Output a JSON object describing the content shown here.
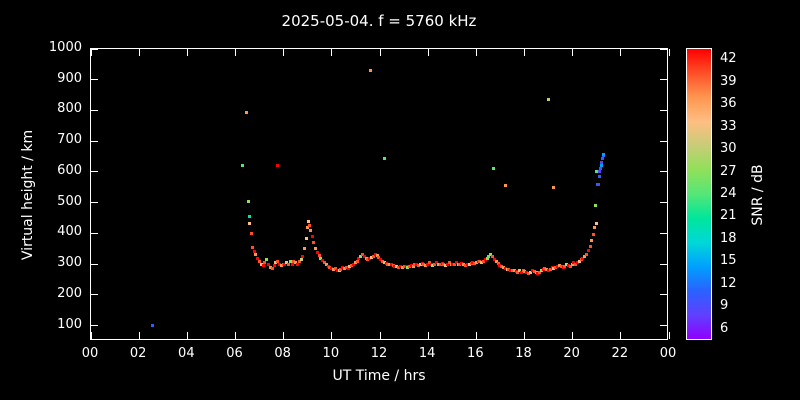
{
  "chart_data": {
    "type": "scatter",
    "title": "2025-05-04. f = 5760 kHz",
    "xlabel": "UT Time / hrs",
    "ylabel": "Virtual height / km",
    "xlim": [
      0,
      24
    ],
    "ylim": [
      50,
      1000
    ],
    "xticks": [
      0,
      2,
      4,
      6,
      8,
      10,
      12,
      14,
      16,
      18,
      20,
      22,
      24
    ],
    "xtick_labels": [
      "00",
      "02",
      "04",
      "06",
      "08",
      "10",
      "12",
      "14",
      "16",
      "18",
      "20",
      "22",
      "00"
    ],
    "yticks": [
      100,
      200,
      300,
      400,
      500,
      600,
      700,
      800,
      900,
      1000
    ],
    "background": "#000000",
    "grid": false,
    "legend": "colorbar-right",
    "colorbar": {
      "label": "SNR / dB",
      "min": 4.5,
      "max": 43.5,
      "ticks": [
        6,
        9,
        12,
        15,
        18,
        21,
        24,
        27,
        30,
        33,
        36,
        39,
        42
      ],
      "colors": [
        "#9000ff",
        "#6040ff",
        "#2a62ff",
        "#00a0ff",
        "#00d8d8",
        "#00e69b",
        "#55e677",
        "#90e05a",
        "#c8cc78",
        "#ffbe82",
        "#ff9650",
        "#ff5028",
        "#ff0000"
      ]
    },
    "points_format": "[ut_hours, virtual_height_km, snr_db]",
    "points": [
      [
        2.55,
        100,
        12
      ],
      [
        6.3,
        620,
        24
      ],
      [
        6.45,
        795,
        36
      ],
      [
        6.52,
        505,
        27
      ],
      [
        6.58,
        455,
        21
      ],
      [
        6.6,
        432,
        33
      ],
      [
        6.65,
        400,
        39
      ],
      [
        6.7,
        355,
        39
      ],
      [
        6.78,
        340,
        42
      ],
      [
        6.85,
        330,
        36
      ],
      [
        6.92,
        320,
        42
      ],
      [
        7.0,
        310,
        39
      ],
      [
        7.08,
        300,
        33
      ],
      [
        7.15,
        295,
        42
      ],
      [
        7.22,
        305,
        39
      ],
      [
        7.3,
        315,
        27
      ],
      [
        7.38,
        300,
        42
      ],
      [
        7.45,
        290,
        36
      ],
      [
        7.52,
        285,
        39
      ],
      [
        7.6,
        295,
        42
      ],
      [
        7.68,
        305,
        30
      ],
      [
        7.75,
        620,
        42
      ],
      [
        7.75,
        310,
        39
      ],
      [
        7.82,
        300,
        42
      ],
      [
        7.9,
        295,
        36
      ],
      [
        7.98,
        300,
        39
      ],
      [
        8.05,
        298,
        42
      ],
      [
        8.12,
        305,
        33
      ],
      [
        8.2,
        300,
        39
      ],
      [
        8.28,
        308,
        27
      ],
      [
        8.35,
        300,
        42
      ],
      [
        8.42,
        310,
        39
      ],
      [
        8.5,
        305,
        36
      ],
      [
        8.58,
        300,
        42
      ],
      [
        8.65,
        308,
        39
      ],
      [
        8.72,
        315,
        30
      ],
      [
        8.8,
        325,
        42
      ],
      [
        8.87,
        350,
        36
      ],
      [
        8.93,
        385,
        33
      ],
      [
        8.98,
        420,
        36
      ],
      [
        9.02,
        440,
        33
      ],
      [
        9.07,
        425,
        39
      ],
      [
        9.12,
        408,
        36
      ],
      [
        9.18,
        390,
        42
      ],
      [
        9.25,
        370,
        39
      ],
      [
        9.32,
        350,
        36
      ],
      [
        9.4,
        338,
        42
      ],
      [
        9.48,
        328,
        39
      ],
      [
        9.55,
        320,
        27
      ],
      [
        9.62,
        312,
        42
      ],
      [
        9.7,
        305,
        39
      ],
      [
        9.78,
        298,
        36
      ],
      [
        9.85,
        292,
        42
      ],
      [
        9.92,
        288,
        39
      ],
      [
        10.0,
        285,
        42
      ],
      [
        10.08,
        282,
        36
      ],
      [
        10.15,
        285,
        39
      ],
      [
        10.22,
        280,
        42
      ],
      [
        10.3,
        278,
        33
      ],
      [
        10.38,
        282,
        39
      ],
      [
        10.45,
        288,
        42
      ],
      [
        10.52,
        285,
        36
      ],
      [
        10.6,
        290,
        39
      ],
      [
        10.68,
        286,
        42
      ],
      [
        10.75,
        292,
        30
      ],
      [
        10.82,
        296,
        39
      ],
      [
        10.9,
        300,
        42
      ],
      [
        10.98,
        305,
        36
      ],
      [
        11.05,
        310,
        39
      ],
      [
        11.12,
        318,
        42
      ],
      [
        11.2,
        325,
        27
      ],
      [
        11.28,
        330,
        39
      ],
      [
        11.35,
        326,
        42
      ],
      [
        11.42,
        320,
        36
      ],
      [
        11.5,
        316,
        39
      ],
      [
        11.58,
        318,
        42
      ],
      [
        11.6,
        930,
        36
      ],
      [
        11.65,
        322,
        33
      ],
      [
        11.72,
        326,
        39
      ],
      [
        11.8,
        330,
        42
      ],
      [
        11.88,
        328,
        36
      ],
      [
        11.95,
        322,
        39
      ],
      [
        12.02,
        316,
        42
      ],
      [
        12.1,
        310,
        39
      ],
      [
        12.18,
        306,
        30
      ],
      [
        12.2,
        645,
        24
      ],
      [
        12.25,
        302,
        42
      ],
      [
        12.32,
        300,
        39
      ],
      [
        12.4,
        298,
        36
      ],
      [
        12.48,
        300,
        42
      ],
      [
        12.55,
        296,
        39
      ],
      [
        12.62,
        294,
        42
      ],
      [
        12.7,
        292,
        33
      ],
      [
        12.78,
        290,
        39
      ],
      [
        12.85,
        292,
        42
      ],
      [
        12.92,
        290,
        36
      ],
      [
        13.0,
        292,
        39
      ],
      [
        13.08,
        294,
        42
      ],
      [
        13.15,
        290,
        27
      ],
      [
        13.22,
        294,
        39
      ],
      [
        13.3,
        296,
        42
      ],
      [
        13.38,
        294,
        36
      ],
      [
        13.45,
        298,
        39
      ],
      [
        13.52,
        300,
        42
      ],
      [
        13.6,
        296,
        39
      ],
      [
        13.68,
        300,
        33
      ],
      [
        13.75,
        302,
        42
      ],
      [
        13.82,
        298,
        39
      ],
      [
        13.9,
        296,
        36
      ],
      [
        13.98,
        300,
        42
      ],
      [
        14.05,
        304,
        39
      ],
      [
        14.12,
        300,
        42
      ],
      [
        14.2,
        296,
        30
      ],
      [
        14.28,
        300,
        39
      ],
      [
        14.35,
        304,
        42
      ],
      [
        14.42,
        300,
        36
      ],
      [
        14.5,
        298,
        39
      ],
      [
        14.58,
        302,
        42
      ],
      [
        14.65,
        300,
        39
      ],
      [
        14.72,
        296,
        33
      ],
      [
        14.8,
        300,
        42
      ],
      [
        14.88,
        304,
        39
      ],
      [
        14.95,
        300,
        36
      ],
      [
        15.02,
        298,
        42
      ],
      [
        15.1,
        300,
        39
      ],
      [
        15.18,
        304,
        42
      ],
      [
        15.25,
        300,
        27
      ],
      [
        15.32,
        298,
        39
      ],
      [
        15.4,
        302,
        42
      ],
      [
        15.48,
        300,
        36
      ],
      [
        15.55,
        296,
        39
      ],
      [
        15.62,
        300,
        42
      ],
      [
        15.7,
        298,
        33
      ],
      [
        15.78,
        302,
        39
      ],
      [
        15.85,
        306,
        42
      ],
      [
        15.92,
        302,
        39
      ],
      [
        16.0,
        304,
        36
      ],
      [
        16.08,
        308,
        42
      ],
      [
        16.15,
        310,
        39
      ],
      [
        16.22,
        306,
        30
      ],
      [
        16.3,
        310,
        39
      ],
      [
        16.38,
        314,
        42
      ],
      [
        16.45,
        320,
        27
      ],
      [
        16.52,
        326,
        24
      ],
      [
        16.6,
        330,
        27
      ],
      [
        16.68,
        324,
        39
      ],
      [
        16.7,
        610,
        24
      ],
      [
        16.75,
        316,
        42
      ],
      [
        16.82,
        308,
        36
      ],
      [
        16.9,
        302,
        39
      ],
      [
        16.98,
        296,
        42
      ],
      [
        17.05,
        292,
        39
      ],
      [
        17.12,
        288,
        36
      ],
      [
        17.2,
        555,
        36
      ],
      [
        17.2,
        286,
        42
      ],
      [
        17.28,
        284,
        33
      ],
      [
        17.35,
        282,
        39
      ],
      [
        17.42,
        280,
        42
      ],
      [
        17.5,
        278,
        39
      ],
      [
        17.58,
        278,
        36
      ],
      [
        17.65,
        276,
        42
      ],
      [
        17.72,
        274,
        39
      ],
      [
        17.8,
        278,
        30
      ],
      [
        17.88,
        274,
        42
      ],
      [
        17.95,
        278,
        39
      ],
      [
        18.02,
        276,
        36
      ],
      [
        18.1,
        274,
        42
      ],
      [
        18.18,
        270,
        39
      ],
      [
        18.25,
        274,
        33
      ],
      [
        18.32,
        278,
        42
      ],
      [
        18.4,
        276,
        39
      ],
      [
        18.48,
        272,
        36
      ],
      [
        18.55,
        270,
        42
      ],
      [
        18.62,
        274,
        39
      ],
      [
        18.7,
        278,
        27
      ],
      [
        18.78,
        282,
        42
      ],
      [
        18.85,
        286,
        39
      ],
      [
        18.92,
        282,
        36
      ],
      [
        19.0,
        835,
        30
      ],
      [
        19.0,
        280,
        42
      ],
      [
        19.08,
        284,
        39
      ],
      [
        19.15,
        288,
        42
      ],
      [
        19.2,
        550,
        36
      ],
      [
        19.22,
        286,
        33
      ],
      [
        19.3,
        290,
        39
      ],
      [
        19.38,
        292,
        42
      ],
      [
        19.45,
        296,
        36
      ],
      [
        19.52,
        292,
        39
      ],
      [
        19.6,
        290,
        42
      ],
      [
        19.68,
        294,
        39
      ],
      [
        19.75,
        298,
        30
      ],
      [
        19.82,
        296,
        42
      ],
      [
        19.9,
        294,
        39
      ],
      [
        19.98,
        300,
        36
      ],
      [
        20.05,
        304,
        42
      ],
      [
        20.12,
        300,
        39
      ],
      [
        20.2,
        306,
        42
      ],
      [
        20.28,
        310,
        33
      ],
      [
        20.35,
        314,
        39
      ],
      [
        20.42,
        318,
        42
      ],
      [
        20.5,
        324,
        36
      ],
      [
        20.58,
        332,
        39
      ],
      [
        20.65,
        344,
        42
      ],
      [
        20.72,
        358,
        39
      ],
      [
        20.8,
        378,
        36
      ],
      [
        20.86,
        398,
        39
      ],
      [
        20.92,
        418,
        36
      ],
      [
        20.97,
        432,
        33
      ],
      [
        20.95,
        490,
        27
      ],
      [
        20.98,
        602,
        24
      ],
      [
        21.02,
        558,
        12
      ],
      [
        21.06,
        560,
        9
      ],
      [
        21.1,
        585,
        12
      ],
      [
        21.12,
        600,
        9
      ],
      [
        21.15,
        612,
        12
      ],
      [
        21.18,
        622,
        15
      ],
      [
        21.2,
        632,
        9
      ],
      [
        21.22,
        645,
        12
      ],
      [
        21.26,
        652,
        12
      ],
      [
        21.3,
        658,
        15
      ]
    ]
  }
}
